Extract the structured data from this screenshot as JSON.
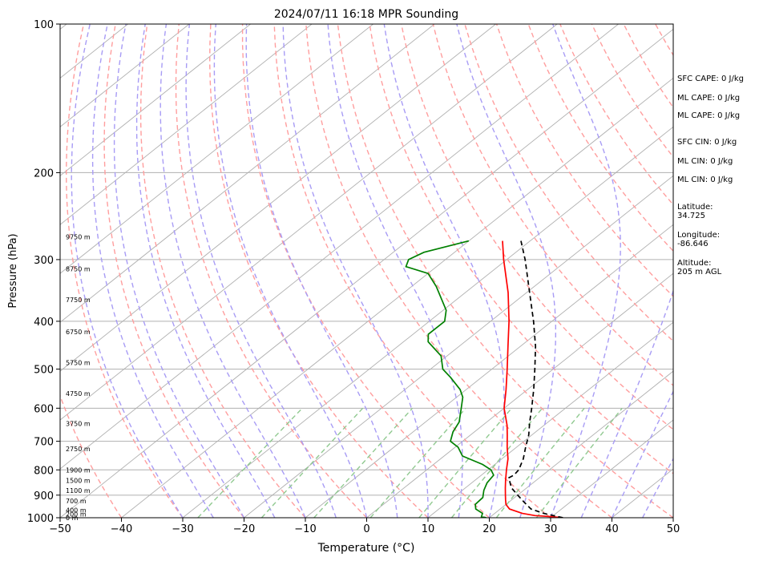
{
  "chart_data": {
    "type": "line",
    "title": "2024/07/11 16:18 MPR Sounding",
    "xlabel": "Temperature (°C)",
    "ylabel": "Pressure (hPa)",
    "xlim": [
      -50,
      50
    ],
    "ylim": [
      1000,
      100
    ],
    "y_scale": "log",
    "skew": "Skew-T log-P",
    "grid": true,
    "x_ticks": [
      "−50",
      "−40",
      "−30",
      "−20",
      "−10",
      "0",
      "10",
      "20",
      "30",
      "40",
      "50"
    ],
    "x_tick_values": [
      -50,
      -40,
      -30,
      -20,
      -10,
      0,
      10,
      20,
      30,
      40,
      50
    ],
    "y_ticks": [
      "100",
      "200",
      "300",
      "400",
      "500",
      "600",
      "700",
      "800",
      "900",
      "1000"
    ],
    "y_tick_values": [
      100,
      200,
      300,
      400,
      500,
      600,
      700,
      800,
      900,
      1000
    ],
    "height_labels": [
      {
        "p": 1000,
        "text": "0 m"
      },
      {
        "p": 983,
        "text": "200 m"
      },
      {
        "p": 965,
        "text": "400 m"
      },
      {
        "p": 925,
        "text": "700 m"
      },
      {
        "p": 880,
        "text": "1100 m"
      },
      {
        "p": 840,
        "text": "1500 m"
      },
      {
        "p": 800,
        "text": "1900 m"
      },
      {
        "p": 725,
        "text": "2750 m"
      },
      {
        "p": 645,
        "text": "3750 m"
      },
      {
        "p": 560,
        "text": "4750 m"
      },
      {
        "p": 485,
        "text": "5750 m"
      },
      {
        "p": 420,
        "text": "6750 m"
      },
      {
        "p": 362,
        "text": "7750 m"
      },
      {
        "p": 313,
        "text": "8750 m"
      },
      {
        "p": 270,
        "text": "9750 m"
      }
    ],
    "series": [
      {
        "color": "#ff0000",
        "style": "solid",
        "points": [
          [
            1000,
            32.0
          ],
          [
            995,
            30.0
          ],
          [
            990,
            27.0
          ],
          [
            980,
            24.5
          ],
          [
            960,
            21.5
          ],
          [
            940,
            20.0
          ],
          [
            920,
            19.0
          ],
          [
            900,
            18.0
          ],
          [
            870,
            16.5
          ],
          [
            840,
            15.0
          ],
          [
            800,
            13.0
          ],
          [
            760,
            11.0
          ],
          [
            720,
            8.5
          ],
          [
            680,
            6.0
          ],
          [
            650,
            4.0
          ],
          [
            600,
            0.0
          ],
          [
            550,
            -3.5
          ],
          [
            500,
            -7.5
          ],
          [
            450,
            -12.0
          ],
          [
            400,
            -17.0
          ],
          [
            350,
            -23.0
          ],
          [
            300,
            -30.5
          ],
          [
            275,
            -34.5
          ]
        ]
      },
      {
        "color": "#008000",
        "style": "solid",
        "points": [
          [
            1000,
            19.5
          ],
          [
            995,
            18.5
          ],
          [
            980,
            18.0
          ],
          [
            960,
            16.0
          ],
          [
            940,
            15.0
          ],
          [
            910,
            14.8
          ],
          [
            880,
            13.5
          ],
          [
            850,
            12.5
          ],
          [
            820,
            12.0
          ],
          [
            800,
            10.5
          ],
          [
            780,
            8.0
          ],
          [
            750,
            3.0
          ],
          [
            720,
            0.5
          ],
          [
            700,
            -2.0
          ],
          [
            670,
            -3.5
          ],
          [
            640,
            -4.5
          ],
          [
            600,
            -7.0
          ],
          [
            570,
            -9.0
          ],
          [
            550,
            -11.0
          ],
          [
            520,
            -15.0
          ],
          [
            500,
            -18.0
          ],
          [
            470,
            -21.0
          ],
          [
            440,
            -26.0
          ],
          [
            425,
            -27.5
          ],
          [
            400,
            -27.5
          ],
          [
            380,
            -29.5
          ],
          [
            340,
            -36.0
          ],
          [
            320,
            -40.0
          ],
          [
            310,
            -45.0
          ],
          [
            300,
            -46.0
          ],
          [
            290,
            -45.0
          ],
          [
            275,
            -40.0
          ]
        ]
      },
      {
        "color": "#000000",
        "style": "dashed",
        "points": [
          [
            1000,
            32.0
          ],
          [
            980,
            28.0
          ],
          [
            960,
            25.0
          ],
          [
            930,
            22.5
          ],
          [
            900,
            20.0
          ],
          [
            870,
            17.5
          ],
          [
            830,
            15.0
          ],
          [
            820,
            15.3
          ],
          [
            800,
            15.0
          ],
          [
            760,
            13.5
          ],
          [
            720,
            11.5
          ],
          [
            680,
            9.5
          ],
          [
            640,
            7.0
          ],
          [
            600,
            4.5
          ],
          [
            550,
            1.0
          ],
          [
            500,
            -3.0
          ],
          [
            450,
            -7.5
          ],
          [
            400,
            -13.0
          ],
          [
            350,
            -19.5
          ],
          [
            300,
            -27.0
          ],
          [
            275,
            -31.5
          ]
        ]
      }
    ]
  },
  "side_info": {
    "sfc_cape": "SFC CAPE: 0 J/kg",
    "ml_cape_1": "ML CAPE: 0 J/kg",
    "ml_cape_2": "ML CAPE: 0 J/kg",
    "sfc_cin": "SFC CIN: 0 J/kg",
    "ml_cin_1": "ML CIN: 0 J/kg",
    "ml_cin_2": "ML CIN: 0 J/kg",
    "latitude_label": "Latitude:",
    "latitude_value": "34.725",
    "longitude_label": "Longitude:",
    "longitude_value": "-86.646",
    "altitude_label": "Altitude:",
    "altitude_value": "205 m AGL"
  },
  "colors": {
    "isotherm": "#b0b0b0",
    "isobar": "#b0b0b0",
    "dry_adiabat": "#ff9e9e",
    "moist_adiabat": "#a89cf5",
    "mixing_ratio": "#90c990",
    "temperature": "#ff0000",
    "dewpoint": "#008000",
    "parcel": "#000000"
  }
}
